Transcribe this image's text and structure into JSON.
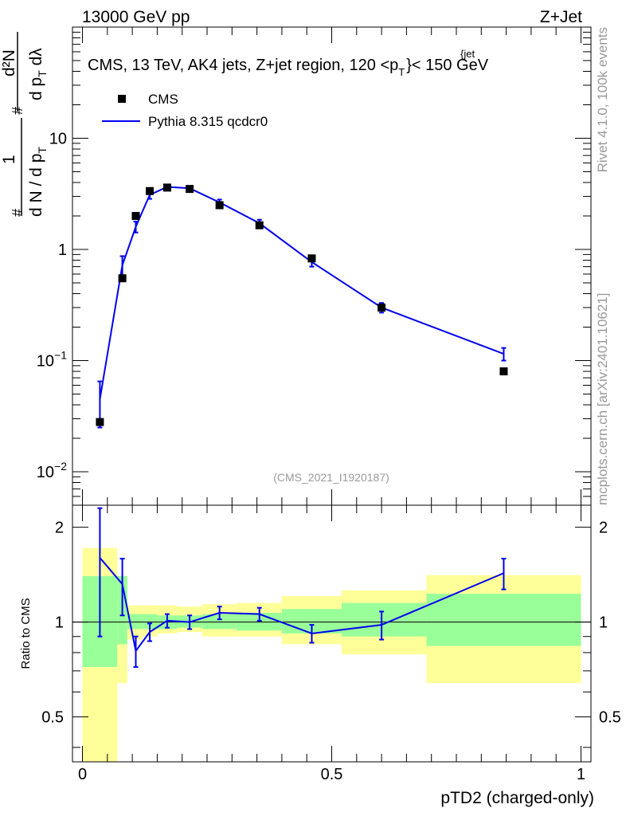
{
  "header": {
    "left": "13000 GeV pp",
    "right": "Z+Jet"
  },
  "side_labels": {
    "rivet": "Rivet 4.1.0,  100k events",
    "mcplots": "mcplots.cern.ch [arXiv:2401.10621]"
  },
  "colors": {
    "mc": "#0000ee",
    "data": "#000000",
    "band_inner": "#99ff99",
    "band_outer": "#ffff99",
    "watermark": "#999999"
  },
  "chart_data": [
    {
      "type": "scatter",
      "panel": "main",
      "title": "CMS, 13 TeV, AK4 jets, Z+jet region, 120 <p",
      "title_sup": "{jet",
      "title_sub": "T",
      "title_end": "}< 150 GeV",
      "watermark": "(CMS_2021_I1920187)",
      "yscale": "log",
      "ylim": [
        0.005,
        100
      ],
      "xlim": [
        -0.02,
        1.02
      ],
      "ylabel": {
        "one": "1",
        "left": "d N / d p",
        "left_sub": "T",
        "right_num": "d²N",
        "right_den": "d p",
        "right_den_sub": "T",
        "right_den_end": " dλ",
        "hash": "#"
      },
      "y_ticks": [
        {
          "value": 0.01,
          "base": "10",
          "exp": "−2"
        },
        {
          "value": 0.1,
          "base": "10",
          "exp": "−1"
        },
        {
          "value": 1,
          "base": "1",
          "exp": ""
        },
        {
          "value": 10,
          "base": "10",
          "exp": ""
        }
      ],
      "legend": {
        "position": "top-left",
        "entries": [
          {
            "label": "CMS",
            "kind": "marker"
          },
          {
            "label": "Pythia 8.315 qcdcr0",
            "kind": "line"
          }
        ]
      },
      "series": [
        {
          "name": "CMS",
          "x": [
            0.035,
            0.08,
            0.107,
            0.135,
            0.17,
            0.215,
            0.275,
            0.355,
            0.46,
            0.6,
            0.845
          ],
          "y": [
            0.028,
            0.55,
            2.0,
            3.35,
            3.6,
            3.5,
            2.5,
            1.65,
            0.83,
            0.3,
            0.08
          ]
        },
        {
          "name": "Pythia 8.315 qcdcr0",
          "x": [
            0.035,
            0.08,
            0.107,
            0.135,
            0.17,
            0.215,
            0.275,
            0.355,
            0.46,
            0.6,
            0.845
          ],
          "y": [
            0.045,
            0.72,
            1.6,
            3.1,
            3.65,
            3.55,
            2.65,
            1.72,
            0.77,
            0.3,
            0.115
          ],
          "err": [
            0.02,
            0.15,
            0.18,
            0.25,
            0.12,
            0.1,
            0.16,
            0.13,
            0.07,
            0.03,
            0.015
          ]
        }
      ]
    },
    {
      "type": "line",
      "panel": "ratio",
      "ylabel": "Ratio to CMS",
      "xlabel": "pTD2 (charged-only)",
      "yscale": "log",
      "ylim": [
        0.36,
        2.35
      ],
      "xlim": [
        -0.02,
        1.02
      ],
      "x_ticks": [
        {
          "value": 0,
          "label": "0"
        },
        {
          "value": 0.5,
          "label": "0.5"
        },
        {
          "value": 1,
          "label": "1"
        }
      ],
      "y_ticks": [
        {
          "value": 0.5,
          "label": "0.5"
        },
        {
          "value": 1,
          "label": "1"
        },
        {
          "value": 2,
          "label": "2"
        }
      ],
      "bins": [
        {
          "lo": 0.0,
          "hi": 0.07,
          "inner": [
            0.72,
            1.4
          ],
          "outer": [
            0.3,
            1.72
          ]
        },
        {
          "lo": 0.07,
          "hi": 0.09,
          "inner": [
            0.85,
            1.4
          ],
          "outer": [
            0.64,
            1.4
          ]
        },
        {
          "lo": 0.09,
          "hi": 0.12,
          "inner": [
            0.95,
            1.06
          ],
          "outer": [
            0.88,
            1.13
          ]
        },
        {
          "lo": 0.12,
          "hi": 0.15,
          "inner": [
            0.95,
            1.06
          ],
          "outer": [
            0.9,
            1.13
          ]
        },
        {
          "lo": 0.15,
          "hi": 0.19,
          "inner": [
            0.95,
            1.05
          ],
          "outer": [
            0.92,
            1.13
          ]
        },
        {
          "lo": 0.19,
          "hi": 0.24,
          "inner": [
            0.96,
            1.05
          ],
          "outer": [
            0.93,
            1.12
          ]
        },
        {
          "lo": 0.24,
          "hi": 0.31,
          "inner": [
            0.95,
            1.06
          ],
          "outer": [
            0.9,
            1.14
          ]
        },
        {
          "lo": 0.31,
          "hi": 0.4,
          "inner": [
            0.94,
            1.07
          ],
          "outer": [
            0.9,
            1.15
          ]
        },
        {
          "lo": 0.4,
          "hi": 0.52,
          "inner": [
            0.92,
            1.1
          ],
          "outer": [
            0.85,
            1.21
          ]
        },
        {
          "lo": 0.52,
          "hi": 0.69,
          "inner": [
            0.9,
            1.15
          ],
          "outer": [
            0.79,
            1.26
          ]
        },
        {
          "lo": 0.69,
          "hi": 1.0,
          "inner": [
            0.84,
            1.23
          ],
          "outer": [
            0.64,
            1.41
          ]
        }
      ],
      "series": [
        {
          "name": "Pythia 8.315 qcdcr0 / CMS",
          "x": [
            0.035,
            0.08,
            0.107,
            0.135,
            0.17,
            0.215,
            0.275,
            0.355,
            0.46,
            0.6,
            0.845
          ],
          "y": [
            1.6,
            1.32,
            0.81,
            0.93,
            1.01,
            1.0,
            1.07,
            1.06,
            0.92,
            0.98,
            1.43
          ],
          "err": [
            0.7,
            0.27,
            0.09,
            0.06,
            0.05,
            0.05,
            0.05,
            0.05,
            0.06,
            0.1,
            0.16
          ]
        }
      ]
    }
  ]
}
